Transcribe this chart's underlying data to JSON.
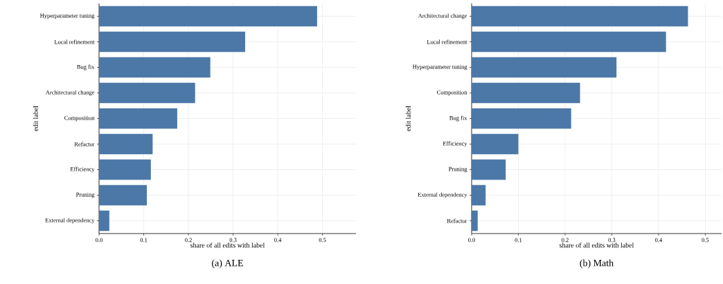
{
  "chart_data": [
    {
      "type": "bar",
      "orientation": "horizontal",
      "title": "(a) ALE",
      "xlabel": "share of all edits with label",
      "ylabel": "edit label",
      "color": "#4c78a8",
      "grid": true,
      "categories": [
        "Hyperparameter tuning",
        "Local refinement",
        "Bug fix",
        "Architectural change",
        "Composition",
        "Refactor",
        "Efficiency",
        "Pruning",
        "External dependency"
      ],
      "values": [
        0.488,
        0.327,
        0.249,
        0.215,
        0.175,
        0.12,
        0.116,
        0.107,
        0.023
      ],
      "xlim": [
        0,
        0.575
      ],
      "xticks": [
        {
          "value": 0,
          "label": "0.0"
        },
        0.1,
        0.2,
        0.3,
        0.4,
        0.5
      ]
    },
    {
      "type": "bar",
      "orientation": "horizontal",
      "title": "(b) Math",
      "xlabel": "share of all edits with label",
      "ylabel": "edit label",
      "color": "#4c78a8",
      "grid": true,
      "categories": [
        "Architectural change",
        "Local refinement",
        "Hyperparameter tuning",
        "Composition",
        "Bug fix",
        "Efficiency",
        "Pruning",
        "External dependency",
        "Refactor"
      ],
      "values": [
        0.463,
        0.416,
        0.31,
        0.232,
        0.213,
        0.1,
        0.073,
        0.03,
        0.013
      ],
      "xlim": [
        0,
        0.535
      ],
      "xticks": [
        {
          "value": 0,
          "label": "0.0"
        },
        0.1,
        0.2,
        0.3,
        0.4,
        0.5
      ]
    }
  ]
}
